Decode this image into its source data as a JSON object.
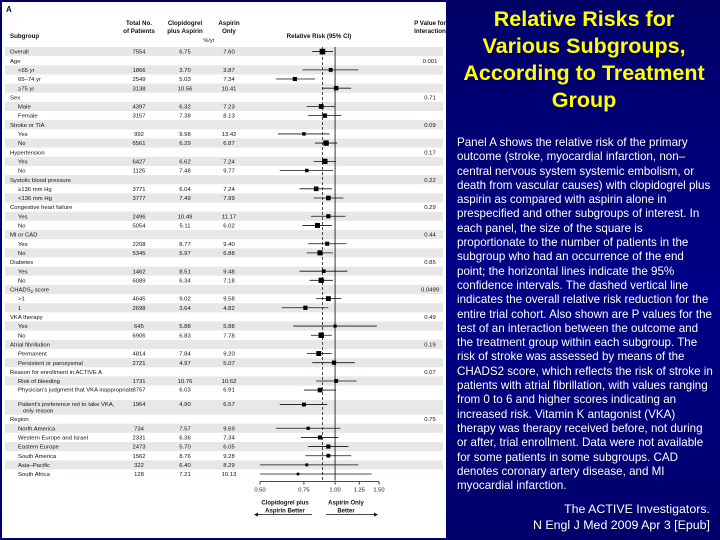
{
  "slide": {
    "title": "Relative Risks for Various Subgroups, According to Treatment Group",
    "description": "Panel A shows the relative risk of the primary outcome (stroke, myocardial infarction, non–central nervous system systemic embolism, or death from vascular causes) with clopidogrel plus aspirin as compared with aspirin alone in prespecified and other subgroups of interest. In each panel, the size of the square is proportionate to the number of patients in the subgroup who had an occurrence of the end point; the horizontal lines indicate the 95% confidence intervals. The dashed vertical line indicates the overall relative risk reduction for the entire trial cohort. Also shown are P values for the test of an interaction between the outcome and the treatment group within each subgroup. The risk of stroke was assessed by means of the CHADS2 score, which reflects the risk of stroke in patients with atrial fibrillation, with values ranging from 0 to 6 and higher scores indicating an increased risk. Vitamin K antagonist (VKA) therapy was therapy received before, not during or after, trial enrollment. Data were not available for some patients in some subgroups. CAD denotes coronary artery disease, and MI myocardial infarction.",
    "citation_line1": "The ACTIVE Investigators.",
    "citation_line2": "N Engl J Med 2009 Apr 3 [Epub]",
    "colors": {
      "background": "#000080",
      "title": "#ffff00",
      "text": "#ffffff"
    }
  },
  "chart_data": {
    "type": "forest",
    "panel_label": "A",
    "headers": {
      "subgroup": "Subgroup",
      "total": [
        "Total No.",
        "of Patients"
      ],
      "clopidogrel": [
        "Clopidogrel",
        "plus Aspirin"
      ],
      "aspirin": [
        "Aspirin",
        "Only"
      ],
      "rate_unit": "%/yr",
      "rr": "Relative Risk (95% CI)",
      "p": [
        "P Value for",
        "Interaction"
      ]
    },
    "xaxis": {
      "scale": "log",
      "range": [
        0.5,
        1.5
      ],
      "ticks": [
        "0.50",
        "0.75",
        "1.00",
        "1.25",
        "1.50"
      ],
      "tick_values": [
        0.5,
        0.75,
        1.0,
        1.25,
        1.5
      ],
      "reference_line": 0.89,
      "label_left": [
        "Clopidogrel plus",
        "Aspirin Better"
      ],
      "label_right": [
        "Aspirin Only",
        "Better"
      ]
    },
    "rows": [
      {
        "label": "Overall",
        "n": "7554",
        "clop": "6.75",
        "asp": "7.60",
        "rr": 0.89,
        "lo": 0.81,
        "hi": 0.98,
        "p": "",
        "level": 0,
        "shade": true
      },
      {
        "label": "Age",
        "n": "",
        "clop": "",
        "asp": "",
        "rr": null,
        "p": "0.001",
        "level": 0,
        "shade": false
      },
      {
        "label": "<65 yr",
        "n": "1866",
        "clop": "3.70",
        "asp": "3.87",
        "rr": 0.96,
        "lo": 0.74,
        "hi": 1.24,
        "p": "",
        "level": 1,
        "shade": true
      },
      {
        "label": "65–74 yr",
        "n": "2549",
        "clop": "5.03",
        "asp": "7.34",
        "rr": 0.69,
        "lo": 0.58,
        "hi": 0.83,
        "p": "",
        "level": 1,
        "shade": false
      },
      {
        "label": "≥75 yr",
        "n": "3138",
        "clop": "10.56",
        "asp": "10.41",
        "rr": 1.01,
        "lo": 0.89,
        "hi": 1.16,
        "p": "",
        "level": 1,
        "shade": true
      },
      {
        "label": "Sex",
        "n": "",
        "clop": "",
        "asp": "",
        "rr": null,
        "p": "0.71",
        "level": 0,
        "shade": false
      },
      {
        "label": "Male",
        "n": "4397",
        "clop": "6.32",
        "asp": "7.23",
        "rr": 0.88,
        "lo": 0.77,
        "hi": 1.0,
        "p": "",
        "level": 1,
        "shade": true
      },
      {
        "label": "Female",
        "n": "3157",
        "clop": "7.38",
        "asp": "8.13",
        "rr": 0.91,
        "lo": 0.78,
        "hi": 1.06,
        "p": "",
        "level": 1,
        "shade": false
      },
      {
        "label": "Stroke or TIA",
        "n": "",
        "clop": "",
        "asp": "",
        "rr": null,
        "p": "0.09",
        "level": 0,
        "shade": true
      },
      {
        "label": "Yes",
        "n": "992",
        "clop": "9.98",
        "asp": "13.42",
        "rr": 0.75,
        "lo": 0.59,
        "hi": 0.95,
        "p": "",
        "level": 1,
        "shade": false
      },
      {
        "label": "No",
        "n": "6561",
        "clop": "6.29",
        "asp": "6.87",
        "rr": 0.92,
        "lo": 0.83,
        "hi": 1.02,
        "p": "",
        "level": 1,
        "shade": true
      },
      {
        "label": "Hypertension",
        "n": "",
        "clop": "",
        "asp": "",
        "rr": null,
        "p": "0.17",
        "level": 0,
        "shade": false
      },
      {
        "label": "Yes",
        "n": "6427",
        "clop": "6.62",
        "asp": "7.24",
        "rr": 0.91,
        "lo": 0.82,
        "hi": 1.01,
        "p": "",
        "level": 1,
        "shade": true
      },
      {
        "label": "No",
        "n": "1125",
        "clop": "7.48",
        "asp": "9.77",
        "rr": 0.77,
        "lo": 0.6,
        "hi": 0.98,
        "p": "",
        "level": 1,
        "shade": false
      },
      {
        "label": "Systolic blood pressure",
        "n": "",
        "clop": "",
        "asp": "",
        "rr": null,
        "p": "0.22",
        "level": 0,
        "shade": true
      },
      {
        "label": "≥136 mm Hg",
        "n": "3771",
        "clop": "6.04",
        "asp": "7.24",
        "rr": 0.84,
        "lo": 0.72,
        "hi": 0.97,
        "p": "",
        "level": 1,
        "shade": false
      },
      {
        "label": "<136 mm Hg",
        "n": "3777",
        "clop": "7.49",
        "asp": "7.99",
        "rr": 0.94,
        "lo": 0.82,
        "hi": 1.08,
        "p": "",
        "level": 1,
        "shade": true
      },
      {
        "label": "Congestive heart failure",
        "n": "",
        "clop": "",
        "asp": "",
        "rr": null,
        "p": "0.29",
        "level": 0,
        "shade": false
      },
      {
        "label": "Yes",
        "n": "2496",
        "clop": "10.49",
        "asp": "11.17",
        "rr": 0.94,
        "lo": 0.8,
        "hi": 1.1,
        "p": "",
        "level": 1,
        "shade": true
      },
      {
        "label": "No",
        "n": "5054",
        "clop": "5.11",
        "asp": "6.02",
        "rr": 0.85,
        "lo": 0.74,
        "hi": 0.97,
        "p": "",
        "level": 1,
        "shade": false
      },
      {
        "label": "MI or CAD",
        "n": "",
        "clop": "",
        "asp": "",
        "rr": null,
        "p": "0.44",
        "level": 0,
        "shade": true
      },
      {
        "label": "Yes",
        "n": "2208",
        "clop": "8.77",
        "asp": "9.40",
        "rr": 0.93,
        "lo": 0.78,
        "hi": 1.11,
        "p": "",
        "level": 1,
        "shade": false
      },
      {
        "label": "No",
        "n": "5345",
        "clop": "5.97",
        "asp": "6.88",
        "rr": 0.87,
        "lo": 0.77,
        "hi": 0.98,
        "p": "",
        "level": 1,
        "shade": true
      },
      {
        "label": "Diabetes",
        "n": "",
        "clop": "",
        "asp": "",
        "rr": null,
        "p": "0.85",
        "level": 0,
        "shade": false
      },
      {
        "label": "Yes",
        "n": "1462",
        "clop": "8.51",
        "asp": "9.48",
        "rr": 0.9,
        "lo": 0.72,
        "hi": 1.12,
        "p": "",
        "level": 1,
        "shade": true
      },
      {
        "label": "No",
        "n": "6089",
        "clop": "6.34",
        "asp": "7.18",
        "rr": 0.88,
        "lo": 0.79,
        "hi": 0.98,
        "p": "",
        "level": 1,
        "shade": false
      },
      {
        "label": "CHADS2 score",
        "n": "",
        "clop": "",
        "asp": "",
        "rr": null,
        "p": "0.0499",
        "level": 0,
        "shade": true
      },
      {
        "label": ">1",
        "n": "4645",
        "clop": "9.02",
        "asp": "9.58",
        "rr": 0.94,
        "lo": 0.84,
        "hi": 1.06,
        "p": "",
        "level": 1,
        "shade": false
      },
      {
        "label": "1",
        "n": "2698",
        "clop": "3.64",
        "asp": "4.82",
        "rr": 0.76,
        "lo": 0.61,
        "hi": 0.94,
        "p": "",
        "level": 1,
        "shade": true
      },
      {
        "label": "VKA therapy",
        "n": "",
        "clop": "",
        "asp": "",
        "rr": null,
        "p": "0.49",
        "level": 0,
        "shade": false
      },
      {
        "label": "Yes",
        "n": "645",
        "clop": "5.88",
        "asp": "5.88",
        "rr": 1.0,
        "lo": 0.68,
        "hi": 1.47,
        "p": "",
        "level": 1,
        "shade": true
      },
      {
        "label": "No",
        "n": "6906",
        "clop": "6.83",
        "asp": "7.78",
        "rr": 0.88,
        "lo": 0.8,
        "hi": 0.97,
        "p": "",
        "level": 1,
        "shade": false
      },
      {
        "label": "Atrial fibrillation",
        "n": "",
        "clop": "",
        "asp": "",
        "rr": null,
        "p": "0.19",
        "level": 0,
        "shade": true
      },
      {
        "label": "Permanent",
        "n": "4814",
        "clop": "7.84",
        "asp": "9.20",
        "rr": 0.86,
        "lo": 0.77,
        "hi": 0.97,
        "p": "",
        "level": 1,
        "shade": false
      },
      {
        "label": "Persistent or paroxysmal",
        "n": "2721",
        "clop": "4.97",
        "asp": "5.07",
        "rr": 0.99,
        "lo": 0.81,
        "hi": 1.2,
        "p": "",
        "level": 1,
        "shade": true
      },
      {
        "label": "Reason for enrollment in ACTIVE A",
        "n": "",
        "clop": "",
        "asp": "",
        "rr": null,
        "p": "0.07",
        "level": 0,
        "shade": false
      },
      {
        "label": "Risk of bleeding",
        "n": "1731",
        "clop": "10.76",
        "asp": "10.62",
        "rr": 1.01,
        "lo": 0.84,
        "hi": 1.22,
        "p": "",
        "level": 1,
        "shade": true
      },
      {
        "label": "Physician's judgment that VKA inappropriate",
        "n": "3757",
        "clop": "6.03",
        "asp": "6.91",
        "rr": 0.87,
        "lo": 0.75,
        "hi": 1.01,
        "p": "",
        "level": 1,
        "shade": false,
        "tall": true
      },
      {
        "label": "Patient's preference not to take VKA, only reason",
        "n": "1964",
        "clop": "4.90",
        "asp": "6.57",
        "rr": 0.75,
        "lo": 0.6,
        "hi": 0.93,
        "p": "",
        "level": 1,
        "shade": true,
        "tall": true
      },
      {
        "label": "Region",
        "n": "",
        "clop": "",
        "asp": "",
        "rr": null,
        "p": "0.75",
        "level": 0,
        "shade": false
      },
      {
        "label": "North America",
        "n": "734",
        "clop": "7.57",
        "asp": "9.69",
        "rr": 0.78,
        "lo": 0.58,
        "hi": 1.05,
        "p": "",
        "level": 1,
        "shade": true
      },
      {
        "label": "Western Europe and Israel",
        "n": "2331",
        "clop": "6.36",
        "asp": "7.34",
        "rr": 0.87,
        "lo": 0.73,
        "hi": 1.03,
        "p": "",
        "level": 1,
        "shade": false
      },
      {
        "label": "Eastern Europe",
        "n": "2473",
        "clop": "5.70",
        "asp": "6.05",
        "rr": 0.94,
        "lo": 0.78,
        "hi": 1.13,
        "p": "",
        "level": 1,
        "shade": true
      },
      {
        "label": "South America",
        "n": "1562",
        "clop": "8.76",
        "asp": "9.28",
        "rr": 0.94,
        "lo": 0.76,
        "hi": 1.16,
        "p": "",
        "level": 1,
        "shade": false
      },
      {
        "label": "Asia–Pacific",
        "n": "322",
        "clop": "6.40",
        "asp": "8.29",
        "rr": 0.77,
        "lo": 0.48,
        "hi": 1.24,
        "p": "",
        "level": 1,
        "shade": true
      },
      {
        "label": "South Africa",
        "n": "128",
        "clop": "7.21",
        "asp": "10.13",
        "rr": 0.71,
        "lo": 0.36,
        "hi": 1.4,
        "p": "",
        "level": 1,
        "shade": false
      }
    ]
  }
}
